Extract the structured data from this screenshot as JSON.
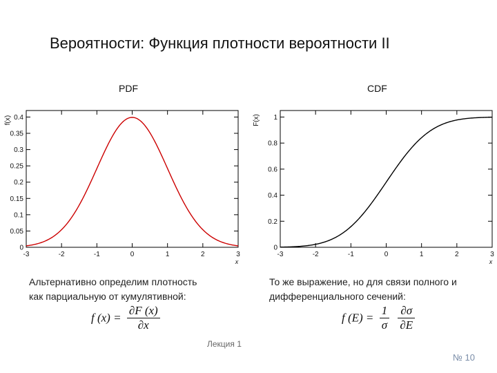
{
  "slide": {
    "title": "Вероятности: Функция плотности вероятности II",
    "footer": "Лекция 1",
    "page_number": "№ 10"
  },
  "left": {
    "heading": "PDF",
    "description": [
      "Альтернативно определим плотность",
      "как парциальную от кумулятивной:"
    ],
    "formula": {
      "lhs": "f (x) =",
      "num": "∂F (x)",
      "den": "∂x"
    }
  },
  "right": {
    "heading": "CDF",
    "description": [
      "То же выражение, но для связи полного и",
      "дифференциального сечений:"
    ],
    "formula": {
      "lhs": "f (E) =",
      "num1": "1",
      "den1": "σ",
      "num2": "∂σ",
      "den2": "∂E"
    }
  },
  "chart_data": [
    {
      "type": "line",
      "function": "standard normal PDF",
      "x_range": [
        -3,
        3
      ],
      "ylim": [
        0,
        0.42
      ],
      "xlabel": "x",
      "ylabel": "f(x)",
      "x_ticks": [
        -3,
        -2,
        -1,
        0,
        1,
        2,
        3
      ],
      "y_ticks": [
        0,
        0.05,
        0.1,
        0.15,
        0.2,
        0.25,
        0.3,
        0.35,
        0.4
      ],
      "y_tick_labels": [
        "0",
        "0.05",
        "0.1",
        "0.15",
        "0.2",
        "0.25",
        "0.3",
        "0.35",
        "0.4"
      ],
      "line_color": "#cc0000",
      "grid": false
    },
    {
      "type": "line",
      "function": "standard normal CDF",
      "x_range": [
        -3,
        3
      ],
      "ylim": [
        0,
        1.05
      ],
      "xlabel": "x",
      "ylabel": "F(x)",
      "x_ticks": [
        -3,
        -2,
        -1,
        0,
        1,
        2,
        3
      ],
      "y_ticks": [
        0,
        0.2,
        0.4,
        0.6,
        0.8,
        1
      ],
      "y_tick_labels": [
        "0",
        "0.2",
        "0.4",
        "0.6",
        "0.8",
        "1"
      ],
      "line_color": "#000000",
      "grid": false
    }
  ]
}
